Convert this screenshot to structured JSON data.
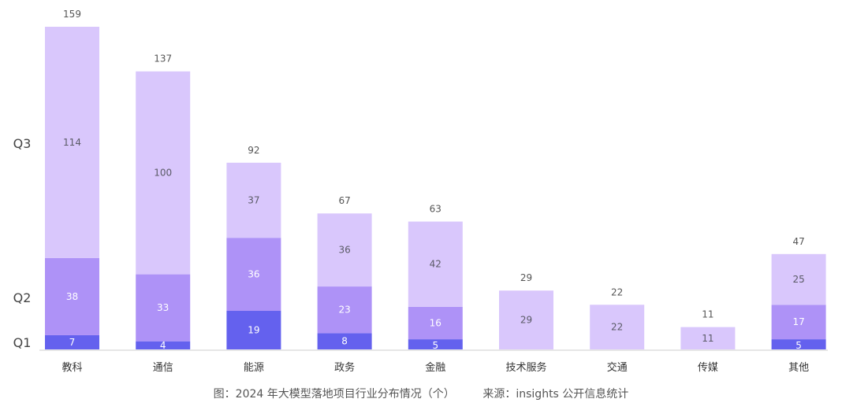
{
  "chart_data": {
    "type": "bar",
    "stacked": true,
    "categories": [
      "教科",
      "通信",
      "能源",
      "政务",
      "金融",
      "技术服务",
      "交通",
      "传媒",
      "其他"
    ],
    "series": [
      {
        "name": "Q1",
        "values": [
          7,
          4,
          19,
          8,
          5,
          0,
          0,
          0,
          5
        ],
        "color": "#6461ee"
      },
      {
        "name": "Q2",
        "values": [
          38,
          33,
          36,
          23,
          16,
          0,
          0,
          0,
          17
        ],
        "color": "#ae92f7"
      },
      {
        "name": "Q3",
        "values": [
          114,
          100,
          37,
          36,
          42,
          29,
          22,
          11,
          25
        ],
        "color": "#d9c7fc"
      }
    ],
    "totals": [
      159,
      137,
      92,
      67,
      63,
      29,
      22,
      11,
      47
    ],
    "ylim": [
      0,
      159
    ],
    "series_labels_position": "left",
    "grid": false,
    "legend": "none",
    "colors": {
      "total_label": "#555555",
      "segment_label_dark": "#5a5a66",
      "segment_label_light": "#ffffff",
      "axis": "#cccccc"
    }
  },
  "caption": {
    "left": "图：2024 年大模型落地项目行业分布情况（个）",
    "right": "来源：insights 公开信息统计"
  }
}
